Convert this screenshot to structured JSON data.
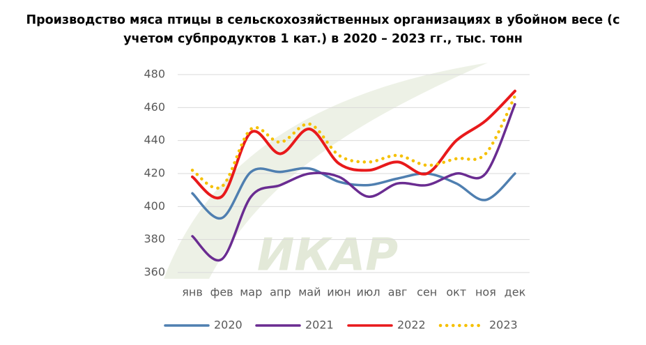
{
  "chart_data": {
    "type": "line",
    "title": "Производство мяса птицы в сельскохозяйственных организациях в убойном весе (с учетом субпродуктов 1 кат.) в 2020 – 2023 гг., тыс. тонн",
    "watermark": "ИКАР",
    "categories": [
      "янв",
      "фев",
      "мар",
      "апр",
      "май",
      "июн",
      "июл",
      "авг",
      "сен",
      "окт",
      "ноя",
      "дек"
    ],
    "series": [
      {
        "name": "2020",
        "color": "#4f7fb0",
        "style": "solid",
        "values": [
          408,
          393,
          421,
          421,
          423,
          415,
          413,
          417,
          420,
          414,
          404,
          420
        ]
      },
      {
        "name": "2021",
        "color": "#6a2c91",
        "style": "solid",
        "values": [
          382,
          368,
          406,
          413,
          420,
          418,
          406,
          414,
          413,
          420,
          420,
          462
        ]
      },
      {
        "name": "2022",
        "color": "#e8191b",
        "style": "solid",
        "values": [
          418,
          406,
          445,
          432,
          447,
          426,
          422,
          427,
          420,
          440,
          452,
          470
        ]
      },
      {
        "name": "2023",
        "color": "#f5c000",
        "style": "dotted",
        "values": [
          422,
          412,
          447,
          439,
          450,
          431,
          427,
          431,
          425,
          429,
          432,
          467
        ]
      }
    ],
    "ylim": [
      360,
      480
    ],
    "yticks": [
      360,
      380,
      400,
      420,
      440,
      460,
      480
    ],
    "grid": true,
    "legend": "bottom"
  }
}
